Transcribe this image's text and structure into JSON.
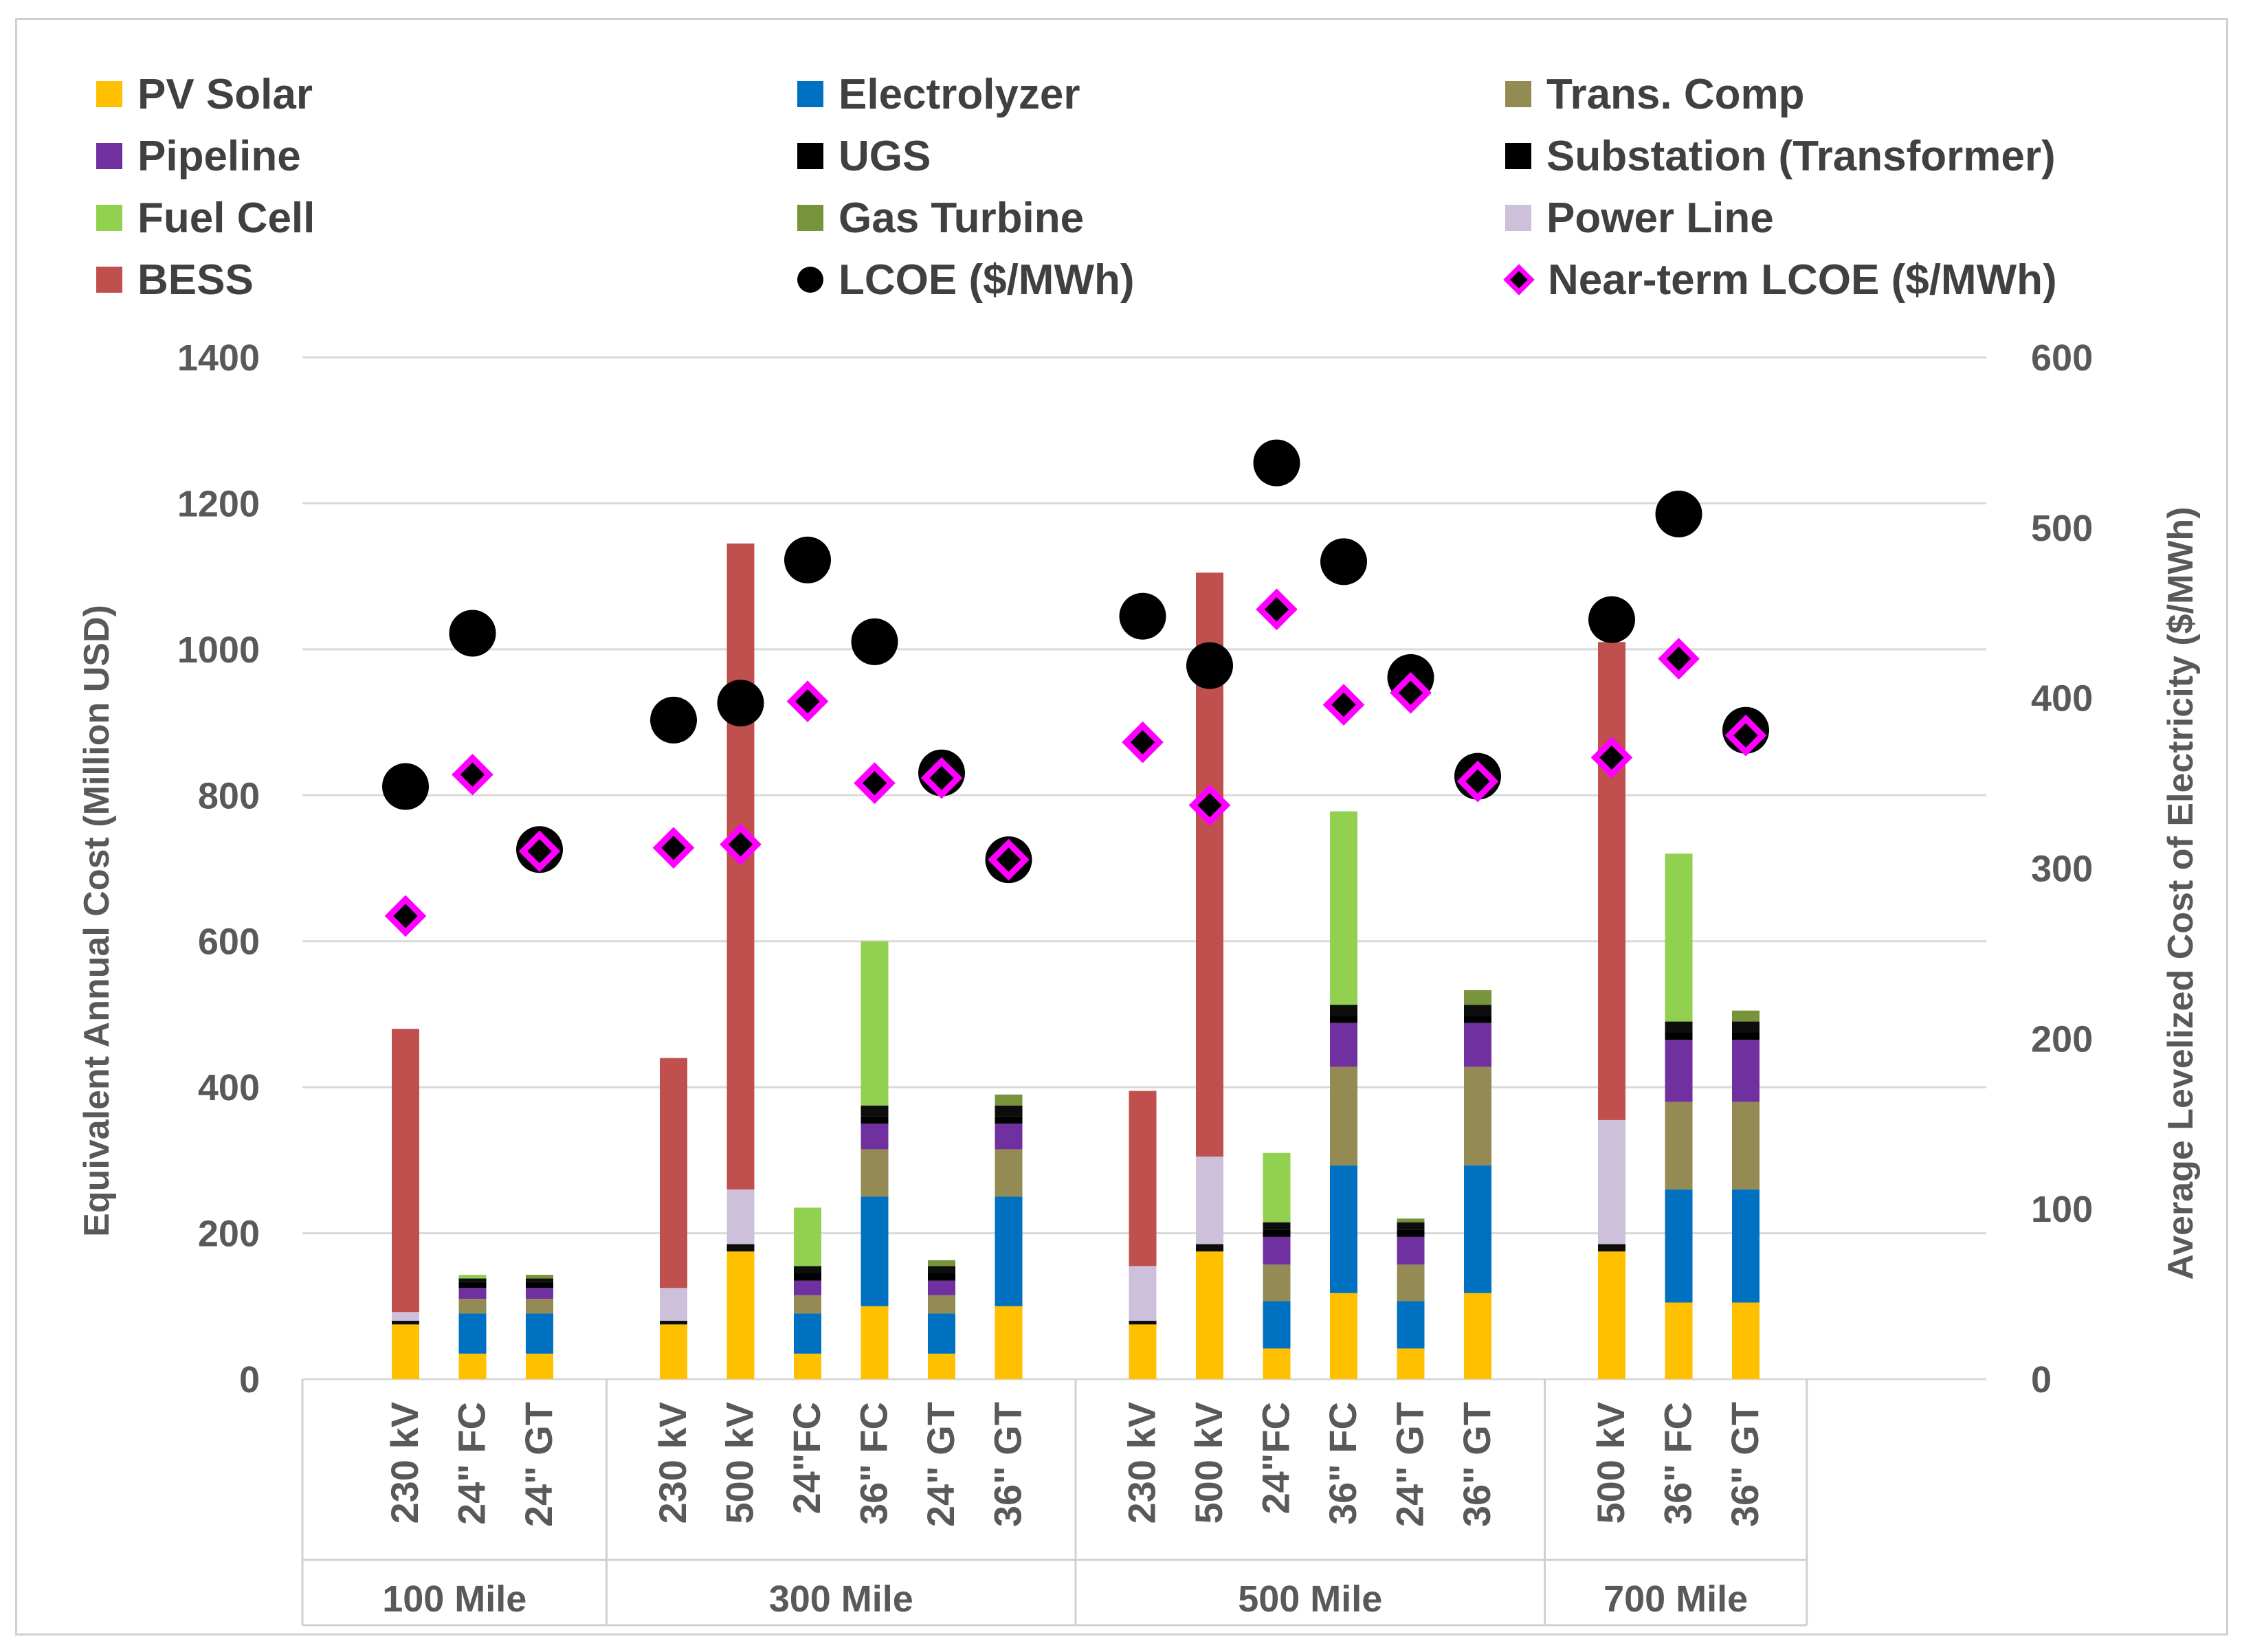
{
  "chart_data": {
    "type": "bar",
    "stacked": true,
    "legend_position": "top",
    "ylabel": "Equivalent Annual Cost (Million USD)",
    "y2label": "Average Levelized Cost of Electricity ($/MWh)",
    "ylim": [
      0,
      1400
    ],
    "yticks": [
      0,
      200,
      400,
      600,
      800,
      1000,
      1200,
      1400
    ],
    "y2lim": [
      0,
      600
    ],
    "y2ticks": [
      0,
      100,
      200,
      300,
      400,
      500,
      600
    ],
    "gridlines": true,
    "groups": [
      {
        "label": "100 Mile",
        "categories": [
          "230 kV",
          "24\" FC",
          "24\" GT"
        ]
      },
      {
        "label": "300 Mile",
        "categories": [
          "230 kV",
          "500 kV",
          "24\"FC",
          "36\" FC",
          "24\" GT",
          "36\" GT"
        ]
      },
      {
        "label": "500 Mile",
        "categories": [
          "230 kV",
          "500 kV",
          "24\"FC",
          "36\" FC",
          "24\" GT",
          "36\" GT"
        ]
      },
      {
        "label": "700 Mile",
        "categories": [
          "500 kV",
          "36\" FC",
          "36\" GT"
        ]
      }
    ],
    "series": [
      {
        "name": "PV Solar",
        "color": "#FFC000",
        "values": [
          75,
          35,
          35,
          75,
          175,
          35,
          100,
          35,
          100,
          75,
          175,
          42,
          118,
          42,
          118,
          175,
          105,
          105
        ]
      },
      {
        "name": "Electrolyzer",
        "color": "#0070C0",
        "values": [
          0,
          55,
          55,
          0,
          0,
          55,
          150,
          55,
          150,
          0,
          0,
          65,
          175,
          65,
          175,
          0,
          155,
          155
        ]
      },
      {
        "name": "Trans. Comp",
        "color": "#948A54",
        "values": [
          0,
          20,
          20,
          0,
          0,
          25,
          65,
          25,
          65,
          0,
          0,
          50,
          135,
          50,
          135,
          0,
          120,
          120
        ]
      },
      {
        "name": "Pipeline",
        "color": "#7030A0",
        "values": [
          0,
          15,
          15,
          0,
          0,
          20,
          35,
          20,
          35,
          0,
          0,
          38,
          60,
          38,
          60,
          0,
          85,
          85
        ]
      },
      {
        "name": "UGS",
        "color": "#000000",
        "values": [
          0,
          8,
          8,
          0,
          0,
          10,
          10,
          10,
          10,
          0,
          0,
          10,
          10,
          10,
          10,
          0,
          10,
          10
        ]
      },
      {
        "name": "Substation (Transformer)",
        "color": "#0d0d0d",
        "values": [
          5,
          5,
          5,
          5,
          10,
          10,
          15,
          10,
          15,
          5,
          10,
          10,
          15,
          10,
          15,
          10,
          15,
          15
        ]
      },
      {
        "name": "Fuel Cell",
        "color": "#92D050",
        "values": [
          0,
          5,
          0,
          0,
          0,
          80,
          225,
          0,
          0,
          0,
          0,
          95,
          265,
          0,
          0,
          0,
          230,
          0
        ]
      },
      {
        "name": "Gas Turbine",
        "color": "#77933C",
        "values": [
          0,
          0,
          5,
          0,
          0,
          0,
          0,
          8,
          15,
          0,
          0,
          0,
          0,
          5,
          20,
          0,
          0,
          15
        ]
      },
      {
        "name": "Power Line",
        "color": "#CCC0DA",
        "values": [
          12,
          0,
          0,
          45,
          75,
          0,
          0,
          0,
          0,
          75,
          120,
          0,
          0,
          0,
          0,
          170,
          0,
          0
        ]
      },
      {
        "name": "BESS",
        "color": "#C0504D",
        "values": [
          388,
          0,
          0,
          315,
          885,
          0,
          0,
          0,
          0,
          240,
          800,
          0,
          0,
          0,
          0,
          655,
          0,
          0
        ]
      }
    ],
    "lines": [
      {
        "name": "LCOE ($/MWh)",
        "axis": "secondary",
        "marker": "circle",
        "color": "#000000",
        "values": [
          348,
          438,
          311,
          387,
          397,
          481,
          433,
          356,
          305,
          448,
          419,
          538,
          480,
          412,
          354,
          446,
          508,
          381
        ]
      },
      {
        "name": "Near-term LCOE ($/MWh)",
        "axis": "secondary",
        "marker": "diamond",
        "color": "#FF00FF",
        "values": [
          272,
          355,
          310,
          312,
          314,
          398,
          350,
          353,
          305,
          374,
          337,
          452,
          396,
          403,
          351,
          365,
          423,
          378
        ]
      }
    ]
  },
  "legend": {
    "items": [
      {
        "label": "PV Solar",
        "color": "#FFC000",
        "shape": "square"
      },
      {
        "label": "Electrolyzer",
        "color": "#0070C0",
        "shape": "square"
      },
      {
        "label": " Trans. Comp",
        "color": "#948A54",
        "shape": "square"
      },
      {
        "label": " Pipeline",
        "color": "#7030A0",
        "shape": "square"
      },
      {
        "label": "UGS",
        "color": "#000000",
        "shape": "square"
      },
      {
        "label": "Substation (Transformer)",
        "color": "#000000",
        "shape": "square"
      },
      {
        "label": "Fuel Cell",
        "color": "#92D050",
        "shape": "square"
      },
      {
        "label": "Gas Turbine",
        "color": "#77933C",
        "shape": "square"
      },
      {
        "label": "Power Line",
        "color": "#CCC0DA",
        "shape": "square"
      },
      {
        "label": "BESS",
        "color": "#C0504D",
        "shape": "square"
      },
      {
        "label": "LCOE ($/MWh)",
        "color": "#000000",
        "shape": "circle"
      },
      {
        "label": "Near-term LCOE ($/MWh)",
        "color": "#000000",
        "shape": "diamond"
      }
    ]
  }
}
